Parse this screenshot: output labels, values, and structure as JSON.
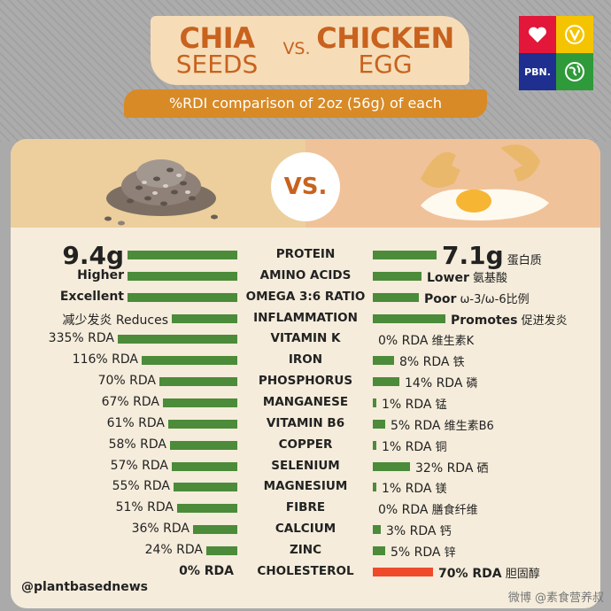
{
  "header": {
    "chia_line1": "CHIA",
    "chia_line2": "SEEDS",
    "vs_small": "VS.",
    "egg_line1": "CHICKEN",
    "egg_line2": "EGG",
    "subtitle": "%RDI comparison of 2oz (56g) of each",
    "vs_big": "VS."
  },
  "logo_icons": [
    "heart-icon",
    "vegan-v-icon",
    "pbn-text-icon",
    "globe-icon"
  ],
  "logo_colors": [
    "#e2173a",
    "#f5c400",
    "#1e2f8f",
    "#2f9a3a"
  ],
  "logo_pbn": "PBN.",
  "rows": [
    {
      "nutrient": "PROTEIN",
      "left": "9.4g",
      "left_frac": 0.92,
      "right": "7.1g",
      "right_cn": "蛋白质",
      "right_frac": 0.72
    },
    {
      "nutrient": "AMINO ACIDS",
      "left": "Higher",
      "left_frac": 0.92,
      "right": "Lower",
      "right_cn": "氨基酸",
      "right_frac": 0.55
    },
    {
      "nutrient": "OMEGA 3:6 RATIO",
      "left": "Excellent",
      "left_frac": 0.92,
      "right": "Poor",
      "right_cn": "ω-3/ω-6比例",
      "right_frac": 0.52
    },
    {
      "nutrient": "INFLAMMATION",
      "left": "减少发炎 Reduces",
      "left_frac": 0.55,
      "right": "Promotes",
      "right_cn": "促进发炎",
      "right_frac": 0.82
    },
    {
      "nutrient": "VITAMIN K",
      "left": "335% RDA",
      "left_frac": 1.0,
      "right": "0% RDA",
      "right_cn": "维生素K",
      "right_frac": 0.0
    },
    {
      "nutrient": "IRON",
      "left": "116% RDA",
      "left_frac": 0.8,
      "right": "8% RDA",
      "right_cn": "铁",
      "right_frac": 0.24
    },
    {
      "nutrient": "PHOSPHORUS",
      "left": "70% RDA",
      "left_frac": 0.65,
      "right": "14% RDA",
      "right_cn": "磷",
      "right_frac": 0.3
    },
    {
      "nutrient": "MANGANESE",
      "left": "67% RDA",
      "left_frac": 0.62,
      "right": "1% RDA",
      "right_cn": "锰",
      "right_frac": 0.04
    },
    {
      "nutrient": "VITAMIN B6",
      "left": "61% RDA",
      "left_frac": 0.58,
      "right": "5% RDA",
      "right_cn": "维生素B6",
      "right_frac": 0.14
    },
    {
      "nutrient": "COPPER",
      "left": "58% RDA",
      "left_frac": 0.56,
      "right": "1% RDA",
      "right_cn": "铜",
      "right_frac": 0.04
    },
    {
      "nutrient": "SELENIUM",
      "left": "57% RDA",
      "left_frac": 0.55,
      "right": "32% RDA",
      "right_cn": "硒",
      "right_frac": 0.42
    },
    {
      "nutrient": "MAGNESIUM",
      "left": "55% RDA",
      "left_frac": 0.53,
      "right": "1% RDA",
      "right_cn": "镁",
      "right_frac": 0.04
    },
    {
      "nutrient": "FIBRE",
      "left": "51% RDA",
      "left_frac": 0.5,
      "right": "0% RDA",
      "right_cn": "膳食纤维",
      "right_frac": 0.0
    },
    {
      "nutrient": "CALCIUM",
      "left": "36% RDA",
      "left_frac": 0.37,
      "right": "3% RDA",
      "right_cn": "钙",
      "right_frac": 0.09
    },
    {
      "nutrient": "ZINC",
      "left": "24% RDA",
      "left_frac": 0.26,
      "right": "5% RDA",
      "right_cn": "锌",
      "right_frac": 0.14
    },
    {
      "nutrient": "CHOLESTEROL",
      "left": "0% RDA",
      "left_frac": 0.0,
      "right": "70% RDA",
      "right_cn": "胆固醇",
      "right_frac": 0.68,
      "right_color": "#ef4b2a"
    }
  ],
  "footer": {
    "handle": "@plantbasednews",
    "watermark": "微博 @素食营养叔"
  }
}
